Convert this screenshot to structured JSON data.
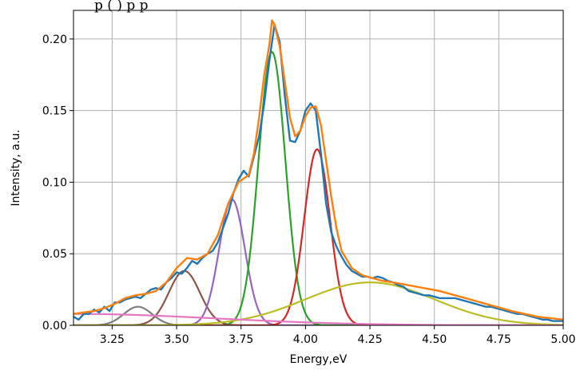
{
  "caption_fragment": "p              (   )            p        p",
  "chart_data": {
    "type": "line",
    "xlabel": "Energy,eV",
    "ylabel": "Intensity, a.u.",
    "xlim": [
      3.1,
      5.0
    ],
    "ylim": [
      0.0,
      0.22
    ],
    "x_ticks": [
      3.25,
      3.5,
      3.75,
      4.0,
      4.25,
      4.5,
      4.75,
      5.0
    ],
    "x_tick_labels": [
      "3.25",
      "3.50",
      "3.75",
      "4.00",
      "4.25",
      "4.50",
      "4.75",
      "5.00"
    ],
    "y_ticks": [
      0.0,
      0.05,
      0.1,
      0.15,
      0.2
    ],
    "y_tick_labels": [
      "0.00",
      "0.05",
      "0.10",
      "0.15",
      "0.20"
    ],
    "grid": true,
    "legend": "none",
    "series": [
      {
        "color": "#1f77b4",
        "x": [
          3.1,
          3.12,
          3.14,
          3.16,
          3.18,
          3.2,
          3.22,
          3.24,
          3.26,
          3.28,
          3.3,
          3.32,
          3.34,
          3.36,
          3.38,
          3.4,
          3.42,
          3.44,
          3.46,
          3.48,
          3.5,
          3.52,
          3.54,
          3.56,
          3.58,
          3.6,
          3.62,
          3.64,
          3.66,
          3.68,
          3.7,
          3.72,
          3.74,
          3.76,
          3.78,
          3.8,
          3.82,
          3.84,
          3.86,
          3.88,
          3.9,
          3.92,
          3.94,
          3.96,
          3.98,
          4.0,
          4.02,
          4.04,
          4.06,
          4.08,
          4.1,
          4.12,
          4.14,
          4.16,
          4.18,
          4.2,
          4.22,
          4.24,
          4.26,
          4.28,
          4.3,
          4.32,
          4.34,
          4.36,
          4.38,
          4.4,
          4.42,
          4.44,
          4.46,
          4.48,
          4.5,
          4.52,
          4.54,
          4.56,
          4.58,
          4.6,
          4.62,
          4.64,
          4.66,
          4.68,
          4.7,
          4.72,
          4.74,
          4.76,
          4.78,
          4.8,
          4.82,
          4.84,
          4.86,
          4.88,
          4.9,
          4.92,
          4.94,
          4.96,
          4.98,
          5.0
        ],
        "y": [
          0.006,
          0.004,
          0.008,
          0.008,
          0.011,
          0.009,
          0.013,
          0.01,
          0.016,
          0.016,
          0.018,
          0.019,
          0.02,
          0.019,
          0.022,
          0.025,
          0.026,
          0.025,
          0.03,
          0.033,
          0.037,
          0.036,
          0.04,
          0.045,
          0.043,
          0.047,
          0.05,
          0.052,
          0.058,
          0.068,
          0.078,
          0.092,
          0.102,
          0.108,
          0.104,
          0.118,
          0.132,
          0.155,
          0.185,
          0.21,
          0.198,
          0.16,
          0.129,
          0.128,
          0.136,
          0.15,
          0.155,
          0.15,
          0.12,
          0.085,
          0.065,
          0.055,
          0.048,
          0.042,
          0.038,
          0.036,
          0.034,
          0.034,
          0.033,
          0.034,
          0.033,
          0.031,
          0.03,
          0.028,
          0.027,
          0.024,
          0.023,
          0.022,
          0.021,
          0.021,
          0.02,
          0.019,
          0.019,
          0.019,
          0.019,
          0.018,
          0.017,
          0.016,
          0.015,
          0.014,
          0.013,
          0.013,
          0.012,
          0.011,
          0.01,
          0.009,
          0.008,
          0.008,
          0.007,
          0.006,
          0.005,
          0.004,
          0.004,
          0.003,
          0.003,
          0.003
        ]
      },
      {
        "color": "#ff7f0e",
        "x": [
          3.1,
          3.14,
          3.18,
          3.22,
          3.26,
          3.3,
          3.34,
          3.38,
          3.42,
          3.46,
          3.5,
          3.54,
          3.58,
          3.62,
          3.66,
          3.7,
          3.74,
          3.78,
          3.8,
          3.82,
          3.84,
          3.86,
          3.87,
          3.88,
          3.9,
          3.92,
          3.94,
          3.96,
          3.98,
          4.0,
          4.02,
          4.04,
          4.06,
          4.08,
          4.1,
          4.12,
          4.14,
          4.18,
          4.22,
          4.26,
          4.3,
          4.34,
          4.4,
          4.46,
          4.52,
          4.6,
          4.7,
          4.8,
          4.9,
          5.0
        ],
        "y": [
          0.008,
          0.009,
          0.01,
          0.012,
          0.015,
          0.019,
          0.021,
          0.022,
          0.024,
          0.03,
          0.04,
          0.047,
          0.046,
          0.05,
          0.063,
          0.085,
          0.1,
          0.105,
          0.12,
          0.145,
          0.175,
          0.196,
          0.213,
          0.21,
          0.195,
          0.17,
          0.145,
          0.132,
          0.136,
          0.146,
          0.152,
          0.153,
          0.14,
          0.115,
          0.09,
          0.068,
          0.052,
          0.04,
          0.035,
          0.033,
          0.031,
          0.03,
          0.028,
          0.026,
          0.024,
          0.02,
          0.015,
          0.01,
          0.006,
          0.004
        ]
      }
    ],
    "components": [
      {
        "color": "#7f7f7f",
        "amp": 0.013,
        "center": 3.35,
        "sigma": 0.055
      },
      {
        "color": "#8c564b",
        "amp": 0.038,
        "center": 3.53,
        "sigma": 0.06
      },
      {
        "color": "#9467bd",
        "amp": 0.088,
        "center": 3.715,
        "sigma": 0.05
      },
      {
        "color": "#2ca02c",
        "amp": 0.191,
        "center": 3.87,
        "sigma": 0.052
      },
      {
        "color": "#d62728",
        "amp": 0.123,
        "center": 4.045,
        "sigma": 0.05
      },
      {
        "color": "#bcbd22",
        "amp": 0.03,
        "center": 4.25,
        "sigma": 0.25
      },
      {
        "color": "#e377c2",
        "amp": 0.008,
        "center": 3.1,
        "sigma": 0.55
      }
    ]
  }
}
